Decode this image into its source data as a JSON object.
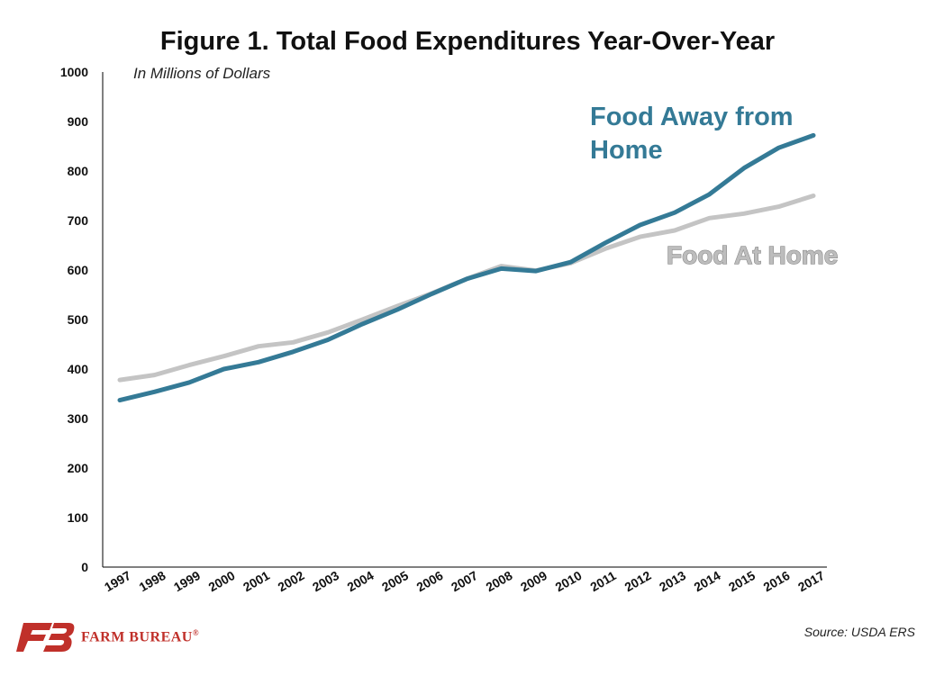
{
  "chart_data": {
    "type": "line",
    "title": "Figure 1. Total Food Expenditures Year-Over-Year",
    "subtitle": "In Millions of Dollars",
    "xlabel": "",
    "ylabel": "",
    "ylim": [
      0,
      1000
    ],
    "yticks": [
      "0",
      "100",
      "200",
      "300",
      "400",
      "500",
      "600",
      "700",
      "800",
      "900",
      "1000"
    ],
    "categories": [
      "1997",
      "1998",
      "1999",
      "2000",
      "2001",
      "2002",
      "2003",
      "2004",
      "2005",
      "2006",
      "2007",
      "2008",
      "2009",
      "2010",
      "2011",
      "2012",
      "2013",
      "2014",
      "2015",
      "2016",
      "2017"
    ],
    "grid": false,
    "series": [
      {
        "name": "Food At Home",
        "color": "#c4c4c4",
        "label_line1": "Food At Home",
        "label_line2": "",
        "values": [
          378,
          388,
          408,
          426,
          446,
          454,
          474,
          500,
          527,
          553,
          582,
          608,
          599,
          614,
          643,
          667,
          680,
          705,
          714,
          728,
          750
        ]
      },
      {
        "name": "Food Away from Home",
        "color": "#347a96",
        "label_line1": "Food Away from",
        "label_line2": "Home",
        "values": [
          337,
          354,
          373,
          400,
          414,
          435,
          459,
          491,
          520,
          552,
          582,
          603,
          598,
          616,
          655,
          691,
          716,
          753,
          806,
          847,
          872
        ]
      }
    ]
  },
  "source": "Source: USDA ERS",
  "logo": {
    "text": "FARM BUREAU",
    "mark": "®",
    "color": "#c0302a"
  }
}
